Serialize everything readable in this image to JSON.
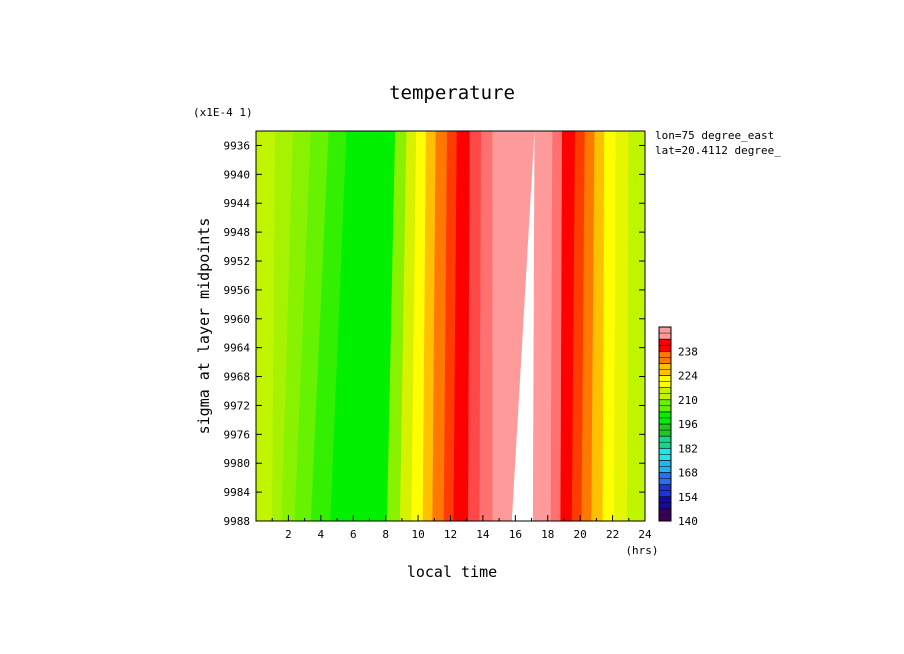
{
  "chart_data": {
    "type": "heatmap",
    "title": "temperature",
    "xlabel": "local time",
    "ylabel": "sigma at layer midpoints",
    "x_units": "(hrs)",
    "y_scale_note": "(x1E-4 1)",
    "annotations": [
      "lon=75 degree_east",
      "lat=20.4112 degree_"
    ],
    "xlim": [
      0,
      24
    ],
    "ylim": [
      9988,
      9934
    ],
    "x_ticks": [
      "2",
      "4",
      "6",
      "8",
      "10",
      "12",
      "14",
      "16",
      "18",
      "20",
      "22",
      "24"
    ],
    "y_ticks": [
      "9936",
      "9940",
      "9944",
      "9948",
      "9952",
      "9956",
      "9960",
      "9964",
      "9968",
      "9972",
      "9976",
      "9980",
      "9984",
      "9988"
    ],
    "colorbar": {
      "range": [
        140,
        252
      ],
      "tick_labels": [
        "140",
        "154",
        "168",
        "182",
        "196",
        "210",
        "224",
        "238"
      ],
      "levels": [
        {
          "from": 140,
          "to": 147,
          "color": "#3a005a"
        },
        {
          "from": 147,
          "to": 154,
          "color": "#160a9a"
        },
        {
          "from": 154,
          "to": 161,
          "color": "#1a34d8"
        },
        {
          "from": 161,
          "to": 168,
          "color": "#2a6ef2"
        },
        {
          "from": 168,
          "to": 175,
          "color": "#22b4f2"
        },
        {
          "from": 175,
          "to": 182,
          "color": "#22e6e6"
        },
        {
          "from": 182,
          "to": 189,
          "color": "#18d68c"
        },
        {
          "from": 189,
          "to": 196,
          "color": "#20c820"
        },
        {
          "from": 196,
          "to": 203,
          "color": "#00f000"
        },
        {
          "from": 203,
          "to": 210,
          "color": "#66f200"
        },
        {
          "from": 210,
          "to": 217,
          "color": "#c4f200"
        },
        {
          "from": 217,
          "to": 224,
          "color": "#ffff00"
        },
        {
          "from": 224,
          "to": 231,
          "color": "#ffc000"
        },
        {
          "from": 231,
          "to": 238,
          "color": "#ff7800"
        },
        {
          "from": 238,
          "to": 245,
          "color": "#ff0000"
        },
        {
          "from": 245,
          "to": 252,
          "color": "#ff9a9a"
        }
      ],
      "above_max_color": "#ffffff"
    },
    "field_bands": [
      {
        "x0_top": 0.0,
        "x0_bottom": 0.0,
        "x1_top": 1.2,
        "x1_bottom": 1.0,
        "color": "#c0f500"
      },
      {
        "x0_top": 1.2,
        "x0_bottom": 1.0,
        "x1_top": 2.3,
        "x1_bottom": 1.6,
        "color": "#a6f200"
      },
      {
        "x0_top": 2.3,
        "x0_bottom": 1.6,
        "x1_top": 3.4,
        "x1_bottom": 2.4,
        "color": "#88f200"
      },
      {
        "x0_top": 3.4,
        "x0_bottom": 2.4,
        "x1_top": 4.5,
        "x1_bottom": 3.4,
        "color": "#66f200"
      },
      {
        "x0_top": 4.5,
        "x0_bottom": 3.4,
        "x1_top": 5.6,
        "x1_bottom": 4.6,
        "color": "#33f000"
      },
      {
        "x0_top": 5.6,
        "x0_bottom": 4.6,
        "x1_top": 8.6,
        "x1_bottom": 8.1,
        "color": "#00f000"
      },
      {
        "x0_top": 8.6,
        "x0_bottom": 8.1,
        "x1_top": 9.3,
        "x1_bottom": 8.9,
        "color": "#88f200"
      },
      {
        "x0_top": 9.3,
        "x0_bottom": 8.9,
        "x1_top": 9.9,
        "x1_bottom": 9.6,
        "color": "#d6f200"
      },
      {
        "x0_top": 9.9,
        "x0_bottom": 9.6,
        "x1_top": 10.5,
        "x1_bottom": 10.3,
        "color": "#ffff00"
      },
      {
        "x0_top": 10.5,
        "x0_bottom": 10.3,
        "x1_top": 11.1,
        "x1_bottom": 10.9,
        "color": "#ffc000"
      },
      {
        "x0_top": 11.1,
        "x0_bottom": 10.9,
        "x1_top": 11.8,
        "x1_bottom": 11.6,
        "color": "#ff7800"
      },
      {
        "x0_top": 11.8,
        "x0_bottom": 11.6,
        "x1_top": 12.4,
        "x1_bottom": 12.2,
        "color": "#ff3c00"
      },
      {
        "x0_top": 12.4,
        "x0_bottom": 12.2,
        "x1_top": 13.2,
        "x1_bottom": 13.1,
        "color": "#ff0000"
      },
      {
        "x0_top": 13.2,
        "x0_bottom": 13.1,
        "x1_top": 13.9,
        "x1_bottom": 13.8,
        "color": "#ff4848"
      },
      {
        "x0_top": 13.9,
        "x0_bottom": 13.8,
        "x1_top": 14.6,
        "x1_bottom": 14.6,
        "color": "#ff7070"
      },
      {
        "x0_top": 14.6,
        "x0_bottom": 14.6,
        "x1_top": 17.2,
        "x1_bottom": 15.8,
        "color": "#ff9a9a"
      },
      {
        "x0_top": 17.2,
        "x0_bottom": 15.8,
        "x1_top": 17.2,
        "x1_bottom": 17.1,
        "color": "#ffffff"
      },
      {
        "x0_top": 17.2,
        "x0_bottom": 17.1,
        "x1_top": 18.3,
        "x1_bottom": 18.2,
        "color": "#ff9a9a"
      },
      {
        "x0_top": 18.3,
        "x0_bottom": 18.2,
        "x1_top": 18.9,
        "x1_bottom": 18.8,
        "color": "#ff7070"
      },
      {
        "x0_top": 18.9,
        "x0_bottom": 18.8,
        "x1_top": 19.7,
        "x1_bottom": 19.5,
        "color": "#ff0000"
      },
      {
        "x0_top": 19.7,
        "x0_bottom": 19.5,
        "x1_top": 20.3,
        "x1_bottom": 20.1,
        "color": "#ff3c00"
      },
      {
        "x0_top": 20.3,
        "x0_bottom": 20.1,
        "x1_top": 20.9,
        "x1_bottom": 20.7,
        "color": "#ff7800"
      },
      {
        "x0_top": 20.9,
        "x0_bottom": 20.7,
        "x1_top": 21.5,
        "x1_bottom": 21.4,
        "color": "#ffc000"
      },
      {
        "x0_top": 21.5,
        "x0_bottom": 21.4,
        "x1_top": 22.2,
        "x1_bottom": 22.1,
        "color": "#ffff00"
      },
      {
        "x0_top": 22.2,
        "x0_bottom": 22.1,
        "x1_top": 23.0,
        "x1_bottom": 22.9,
        "color": "#e6f500"
      },
      {
        "x0_top": 23.0,
        "x0_bottom": 22.9,
        "x1_top": 24.0,
        "x1_bottom": 24.0,
        "color": "#c0f500"
      }
    ]
  }
}
